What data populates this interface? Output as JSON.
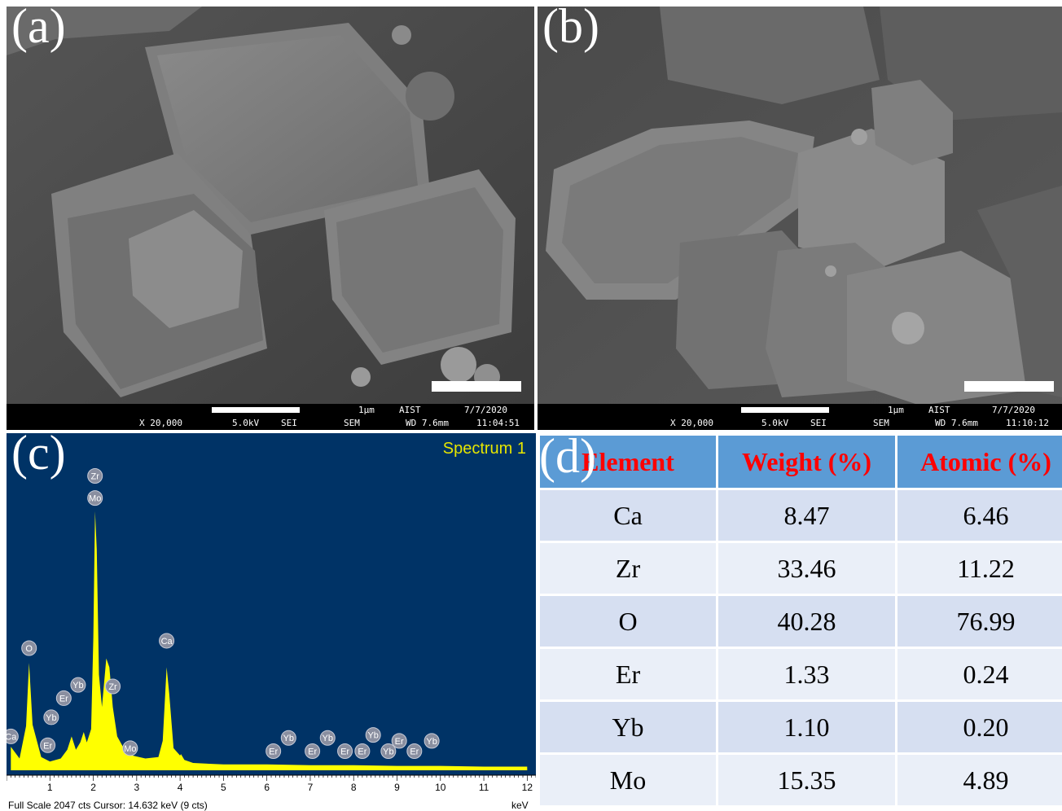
{
  "panels": {
    "a": {
      "letter": "(a)",
      "sem": {
        "mag": "X 20,000",
        "kv": "5.0kV",
        "det": "SEI",
        "mode": "SEM",
        "scale": "1μm",
        "org": "AIST",
        "wd": "WD 7.6mm",
        "date": "7/7/2020",
        "time": "11:04:51"
      }
    },
    "b": {
      "letter": "(b)",
      "sem": {
        "mag": "X 20,000",
        "kv": "5.0kV",
        "det": "SEI",
        "mode": "SEM",
        "scale": "1μm",
        "org": "AIST",
        "wd": "WD 7.6mm",
        "date": "7/7/2020",
        "time": "11:10:12"
      }
    },
    "c": {
      "letter": "(c)"
    },
    "d": {
      "letter": "(d)"
    }
  },
  "spectrum": {
    "title": "Spectrum 1",
    "xlabel": "keV",
    "footer": "Full Scale 2047 cts  Cursor: 14.632 keV (9 cts)",
    "background_color": "#003366",
    "trace_color": "#ffff00"
  },
  "chart_data": {
    "type": "area",
    "title": "Spectrum 1",
    "xlabel": "keV",
    "ylabel": "",
    "xlim": [
      0,
      12.2
    ],
    "xticks": [
      1,
      2,
      3,
      4,
      5,
      6,
      7,
      8,
      9,
      10,
      11,
      12
    ],
    "ylim": [
      0,
      2047
    ],
    "x": [
      0.1,
      0.3,
      0.45,
      0.52,
      0.6,
      0.8,
      1.0,
      1.25,
      1.4,
      1.5,
      1.6,
      1.7,
      1.78,
      1.85,
      1.95,
      2.0,
      2.04,
      2.08,
      2.13,
      2.2,
      2.3,
      2.37,
      2.45,
      2.55,
      2.7,
      2.9,
      3.2,
      3.5,
      3.6,
      3.69,
      3.75,
      3.85,
      4.0,
      4.02,
      4.1,
      4.3,
      5.0,
      6.0,
      7.0,
      8.0,
      9.0,
      10.0,
      11.0,
      12.0
    ],
    "y": [
      160,
      80,
      300,
      730,
      310,
      90,
      60,
      80,
      140,
      230,
      140,
      190,
      260,
      190,
      280,
      900,
      1760,
      1500,
      650,
      430,
      760,
      700,
      430,
      230,
      150,
      100,
      80,
      90,
      200,
      700,
      520,
      150,
      100,
      110,
      70,
      50,
      40,
      40,
      35,
      35,
      30,
      30,
      25,
      25
    ],
    "peak_labels": [
      {
        "label": "Ca",
        "x": 0.1,
        "y": 230
      },
      {
        "label": "O",
        "x": 0.52,
        "y": 830
      },
      {
        "label": "Er",
        "x": 0.95,
        "y": 170
      },
      {
        "label": "Yb",
        "x": 1.03,
        "y": 360
      },
      {
        "label": "Er",
        "x": 1.32,
        "y": 490
      },
      {
        "label": "Yb",
        "x": 1.65,
        "y": 580
      },
      {
        "label": "Zr",
        "x": 2.04,
        "y": 2000
      },
      {
        "label": "Mo",
        "x": 2.04,
        "y": 1850
      },
      {
        "label": "Zr",
        "x": 2.45,
        "y": 570
      },
      {
        "label": "Mo",
        "x": 2.85,
        "y": 150
      },
      {
        "label": "Ca",
        "x": 3.69,
        "y": 880
      },
      {
        "label": "Er",
        "x": 6.15,
        "y": 130
      },
      {
        "label": "Yb",
        "x": 6.5,
        "y": 220
      },
      {
        "label": "Er",
        "x": 7.05,
        "y": 130
      },
      {
        "label": "Yb",
        "x": 7.4,
        "y": 220
      },
      {
        "label": "Er",
        "x": 7.8,
        "y": 130
      },
      {
        "label": "Er",
        "x": 8.2,
        "y": 130
      },
      {
        "label": "Yb",
        "x": 8.45,
        "y": 240
      },
      {
        "label": "Yb",
        "x": 8.8,
        "y": 130
      },
      {
        "label": "Er",
        "x": 9.05,
        "y": 200
      },
      {
        "label": "Er",
        "x": 9.4,
        "y": 130
      },
      {
        "label": "Yb",
        "x": 9.8,
        "y": 200
      }
    ]
  },
  "table": {
    "headers": [
      "Element",
      "Weight (%)",
      "Atomic (%)"
    ],
    "rows": [
      [
        "Ca",
        "8.47",
        "6.46"
      ],
      [
        "Zr",
        "33.46",
        "11.22"
      ],
      [
        "O",
        "40.28",
        "76.99"
      ],
      [
        "Er",
        "1.33",
        "0.24"
      ],
      [
        "Yb",
        "1.10",
        "0.20"
      ],
      [
        "Mo",
        "15.35",
        "4.89"
      ]
    ]
  }
}
